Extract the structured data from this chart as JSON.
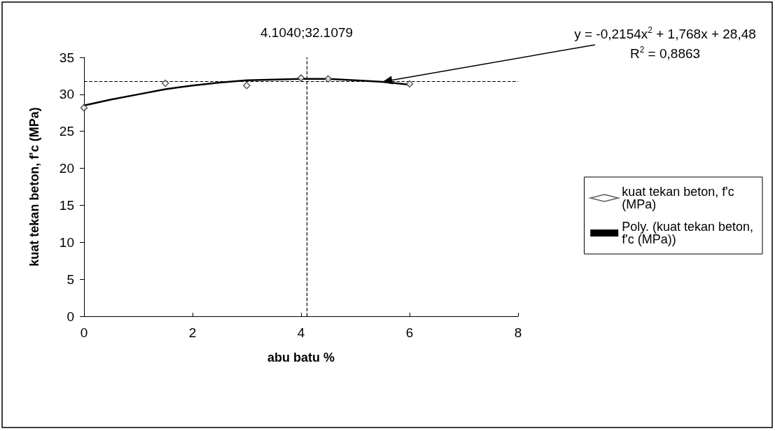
{
  "chart_data": {
    "type": "scatter",
    "xlabel": "abu batu %",
    "ylabel": "kuat tekan beton, f'c (MPa)",
    "xlim": [
      0,
      8
    ],
    "xticks": [
      0,
      2,
      4,
      6,
      8
    ],
    "ylim": [
      0,
      35
    ],
    "yticks": [
      0,
      5,
      10,
      15,
      20,
      25,
      30,
      35
    ],
    "grid": false,
    "legend": "right",
    "marker": "diamond",
    "series": [
      {
        "name": "kuat tekan beton, f'c (MPa)",
        "color": "#333333",
        "x": [
          0,
          1.5,
          3,
          4,
          4.5,
          6
        ],
        "values": [
          28.2,
          31.5,
          31.2,
          32.2,
          32.1,
          31.4
        ]
      },
      {
        "name": "Poly. (kuat tekan beton, f'c (MPa))",
        "type": "line",
        "marker": "none",
        "line_style": "solid",
        "color": "#000000",
        "x": [
          0,
          0.5,
          1,
          1.5,
          2,
          2.5,
          3,
          3.5,
          4,
          4.5,
          5,
          5.5,
          6
        ],
        "values": [
          28.5,
          29.3,
          30.0,
          30.7,
          31.2,
          31.6,
          31.9,
          32.0,
          32.1,
          32.1,
          31.9,
          31.7,
          31.3
        ]
      }
    ],
    "ref_lines": [
      {
        "axis": "x",
        "value": 4.104,
        "line_style": "dashed",
        "color": "#000000"
      },
      {
        "axis": "y",
        "value": 31.8,
        "line_style": "dashed",
        "color": "#000000"
      }
    ],
    "annotations": [
      {
        "text": "4.1040;32.1079",
        "x": 4.104,
        "y": 32.1079
      },
      "y = -0,2154x$^{2}$ + 1,768x + 28,48",
      "R$^{2}$ = 0,8863"
    ]
  }
}
